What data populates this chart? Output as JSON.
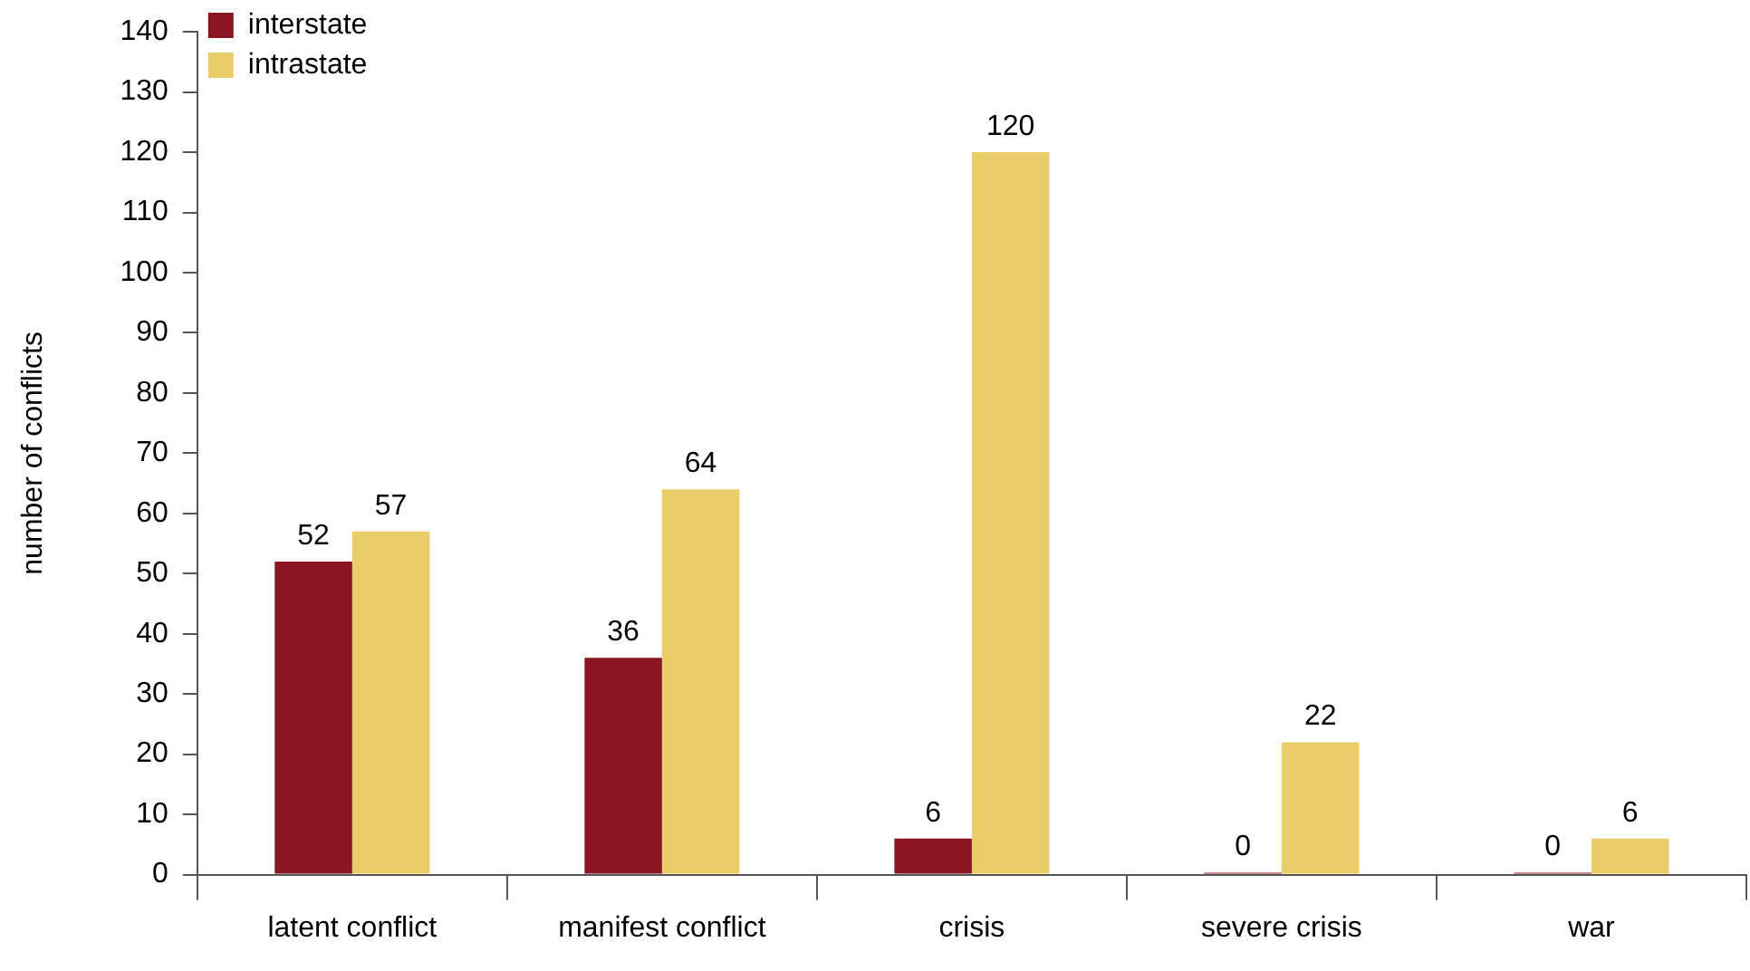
{
  "chart_data": {
    "type": "bar",
    "ylabel": "number of conflicts",
    "categories": [
      "latent conflict",
      "manifest conflict",
      "crisis",
      "severe crisis",
      "war"
    ],
    "series": [
      {
        "name": "interstate",
        "color": "#8b1520",
        "values": [
          52,
          36,
          6,
          0,
          0
        ]
      },
      {
        "name": "intrastate",
        "color": "#e8cd68",
        "values": [
          57,
          64,
          120,
          22,
          6
        ]
      }
    ],
    "ylim": [
      0,
      140
    ],
    "yticks": [
      0,
      10,
      20,
      30,
      40,
      50,
      60,
      70,
      80,
      90,
      100,
      110,
      120,
      130,
      140
    ],
    "grid": false,
    "legend": "top left",
    "data_labels": true
  }
}
